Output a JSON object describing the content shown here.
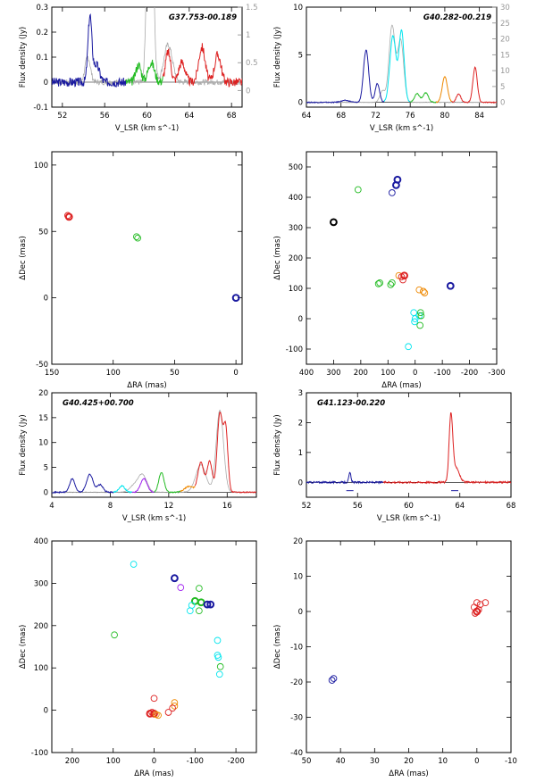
{
  "chart_data": [
    {
      "type": "line",
      "panel": "spectrum",
      "title": "G37.753-00.189",
      "xlabel": "V_LSR (km s^-1)",
      "ylabel": "Flux density (Jy)",
      "xlim": [
        51,
        69
      ],
      "ylim": [
        -0.1,
        0.3
      ],
      "xticks": [
        52,
        56,
        60,
        64,
        68
      ],
      "yticks": [
        -0.1,
        0,
        0.1,
        0.2,
        0.3
      ],
      "y2lim": [
        -0.3,
        1.5
      ],
      "y2ticks": [
        0,
        0.5,
        1,
        1.5
      ],
      "baseline": 0,
      "noise": 0.018,
      "overlay": {
        "color": "#aaaaaa",
        "peaks": [
          [
            54.4,
            0.1,
            0.25
          ],
          [
            60.3,
            1.2,
            0.25
          ],
          [
            62.0,
            0.15,
            0.4
          ]
        ]
      },
      "series": [
        {
          "color": "#1a1aa0",
          "range": [
            51,
            58
          ],
          "peaks": [
            [
              54.6,
              0.26,
              0.18
            ],
            [
              55.2,
              0.07,
              0.3
            ]
          ]
        },
        {
          "color": "#22bb22",
          "range": [
            58,
            61.5
          ],
          "peaks": [
            [
              59.2,
              0.07,
              0.25
            ],
            [
              60.4,
              0.08,
              0.3
            ]
          ]
        },
        {
          "color": "#dd2222",
          "range": [
            61.5,
            69
          ],
          "peaks": [
            [
              62.0,
              0.12,
              0.25
            ],
            [
              63.3,
              0.08,
              0.3
            ],
            [
              65.2,
              0.14,
              0.3
            ],
            [
              66.7,
              0.11,
              0.3
            ]
          ]
        }
      ]
    },
    {
      "type": "line",
      "panel": "spectrum",
      "title": "G40.282-00.219",
      "xlabel": "V_LSR (km s^-1)",
      "ylabel": "Flux density (Jy)",
      "xlim": [
        64,
        86
      ],
      "ylim": [
        -0.5,
        10
      ],
      "xticks": [
        64,
        68,
        72,
        76,
        80,
        84
      ],
      "yticks": [
        0,
        5,
        10
      ],
      "y2lim": [
        -1.5,
        30
      ],
      "y2ticks": [
        0,
        5,
        10,
        15,
        20,
        25,
        30
      ],
      "baseline": 0,
      "noise": 0.05,
      "overlay": {
        "color": "#aaaaaa",
        "peaks": [
          [
            73.9,
            8.0,
            0.35
          ],
          [
            74.9,
            6.5,
            0.35
          ],
          [
            72.8,
            1.2,
            0.3
          ]
        ]
      },
      "series": [
        {
          "color": "#1a1aa0",
          "range": [
            64,
            73
          ],
          "peaks": [
            [
              70.9,
              5.5,
              0.3
            ],
            [
              72.2,
              2.0,
              0.25
            ],
            [
              68.5,
              0.2,
              0.5
            ]
          ]
        },
        {
          "color": "#00e5ee",
          "range": [
            73,
            76
          ],
          "peaks": [
            [
              74.0,
              7.0,
              0.35
            ],
            [
              75.0,
              7.5,
              0.3
            ]
          ]
        },
        {
          "color": "#22bb22",
          "range": [
            76,
            79
          ],
          "peaks": [
            [
              76.8,
              0.9,
              0.3
            ],
            [
              77.8,
              1.0,
              0.3
            ]
          ]
        },
        {
          "color": "#ee8800",
          "range": [
            79,
            80.8
          ],
          "peaks": [
            [
              80.0,
              2.7,
              0.3
            ]
          ]
        },
        {
          "color": "#dd2222",
          "range": [
            80.8,
            86
          ],
          "peaks": [
            [
              81.6,
              0.9,
              0.25
            ],
            [
              83.5,
              3.7,
              0.25
            ]
          ]
        }
      ]
    },
    {
      "type": "scatter",
      "panel": "map",
      "xlabel": "ΔRA (mas)",
      "ylabel": "ΔDec (mas)",
      "xlim": [
        150,
        -5
      ],
      "ylim": [
        -50,
        110
      ],
      "xticks": [
        150,
        100,
        50,
        0
      ],
      "yticks": [
        -50,
        0,
        50,
        100
      ],
      "points": [
        {
          "x": 136,
          "y": 61,
          "color": "#dd2222",
          "bold": true
        },
        {
          "x": 137,
          "y": 62,
          "color": "#dd2222",
          "bold": false
        },
        {
          "x": 80,
          "y": 45,
          "color": "#22bb22",
          "bold": false
        },
        {
          "x": 81,
          "y": 46,
          "color": "#22bb22",
          "bold": false
        },
        {
          "x": 0,
          "y": 0,
          "color": "#1a1aa0",
          "bold": true
        }
      ]
    },
    {
      "type": "scatter",
      "panel": "map",
      "xlabel": "ΔRA (mas)",
      "ylabel": "ΔDec (mas)",
      "xlim": [
        400,
        -300
      ],
      "ylim": [
        -150,
        550
      ],
      "xticks": [
        400,
        300,
        200,
        100,
        0,
        -100,
        -200,
        -300
      ],
      "yticks": [
        -100,
        0,
        100,
        200,
        300,
        400,
        500
      ],
      "points": [
        {
          "x": 300,
          "y": 318,
          "color": "#000000",
          "bold": true
        },
        {
          "x": 210,
          "y": 425,
          "color": "#22bb22",
          "bold": false
        },
        {
          "x": 85,
          "y": 415,
          "color": "#1a1aa0",
          "bold": false
        },
        {
          "x": 70,
          "y": 440,
          "color": "#1a1aa0",
          "bold": true
        },
        {
          "x": 65,
          "y": 458,
          "color": "#1a1aa0",
          "bold": true
        },
        {
          "x": 135,
          "y": 115,
          "color": "#22bb22",
          "bold": false
        },
        {
          "x": 130,
          "y": 118,
          "color": "#22bb22",
          "bold": false
        },
        {
          "x": 90,
          "y": 112,
          "color": "#22bb22",
          "bold": false
        },
        {
          "x": 85,
          "y": 118,
          "color": "#22bb22",
          "bold": false
        },
        {
          "x": 60,
          "y": 142,
          "color": "#ee8800",
          "bold": false
        },
        {
          "x": 50,
          "y": 138,
          "color": "#dd2222",
          "bold": false
        },
        {
          "x": 40,
          "y": 142,
          "color": "#dd2222",
          "bold": true
        },
        {
          "x": 45,
          "y": 128,
          "color": "#dd2222",
          "bold": false
        },
        {
          "x": -15,
          "y": 95,
          "color": "#ee8800",
          "bold": false
        },
        {
          "x": -30,
          "y": 90,
          "color": "#ee8800",
          "bold": false
        },
        {
          "x": -35,
          "y": 85,
          "color": "#ee8800",
          "bold": false
        },
        {
          "x": -130,
          "y": 108,
          "color": "#1a1aa0",
          "bold": true
        },
        {
          "x": 5,
          "y": 20,
          "color": "#00e5ee",
          "bold": false
        },
        {
          "x": 0,
          "y": 0,
          "color": "#00e5ee",
          "bold": false
        },
        {
          "x": 2,
          "y": -10,
          "color": "#00e5ee",
          "bold": false
        },
        {
          "x": -15,
          "y": 10,
          "color": "#00e5ee",
          "bold": false
        },
        {
          "x": -20,
          "y": 20,
          "color": "#22bb22",
          "bold": false
        },
        {
          "x": -22,
          "y": 10,
          "color": "#22bb22",
          "bold": false
        },
        {
          "x": -18,
          "y": -22,
          "color": "#22bb22",
          "bold": false
        },
        {
          "x": 25,
          "y": -92,
          "color": "#00e5ee",
          "bold": false
        }
      ]
    },
    {
      "type": "line",
      "panel": "spectrum",
      "title": "G40.425+00.700",
      "xlabel": "V_LSR (km s^-1)",
      "ylabel": "Flux density (Jy)",
      "xlim": [
        4,
        18
      ],
      "ylim": [
        -1,
        20
      ],
      "xticks": [
        4,
        8,
        12,
        16
      ],
      "yticks": [
        0,
        5,
        10,
        15,
        20
      ],
      "baseline": 0,
      "noise": 0.12,
      "overlay": {
        "color": "#aaaaaa",
        "peaks": [
          [
            10.2,
            3.5,
            0.3
          ],
          [
            14.2,
            5.5,
            0.35
          ],
          [
            15.5,
            16.5,
            0.25
          ],
          [
            9.6,
            1.2,
            0.3
          ]
        ]
      },
      "series": [
        {
          "color": "#1a1aa0",
          "range": [
            4,
            8.2
          ],
          "peaks": [
            [
              5.4,
              2.7,
              0.18
            ],
            [
              6.6,
              3.6,
              0.22
            ],
            [
              7.3,
              1.5,
              0.2
            ]
          ]
        },
        {
          "color": "#00e5ee",
          "range": [
            8.2,
            9.5
          ],
          "peaks": [
            [
              8.8,
              1.3,
              0.2
            ]
          ]
        },
        {
          "color": "#a020f0",
          "range": [
            9.5,
            11.0
          ],
          "peaks": [
            [
              10.3,
              2.8,
              0.22
            ]
          ]
        },
        {
          "color": "#22bb22",
          "range": [
            11.0,
            12.8
          ],
          "peaks": [
            [
              11.5,
              4.0,
              0.18
            ]
          ]
        },
        {
          "color": "#ee8800",
          "range": [
            12.8,
            13.8
          ],
          "peaks": [
            [
              13.4,
              1.2,
              0.3
            ]
          ]
        },
        {
          "color": "#dd2222",
          "range": [
            13.8,
            18
          ],
          "peaks": [
            [
              14.2,
              6.0,
              0.2
            ],
            [
              14.8,
              6.2,
              0.18
            ],
            [
              15.5,
              15.8,
              0.18
            ],
            [
              15.9,
              12.5,
              0.15
            ]
          ]
        }
      ]
    },
    {
      "type": "line",
      "panel": "spectrum",
      "title": "G41.123-00.220",
      "xlabel": "V_LSR (km s^-1)",
      "ylabel": "Flux density (Jy)",
      "xlim": [
        52,
        68
      ],
      "ylim": [
        -0.5,
        3
      ],
      "xticks": [
        52,
        56,
        60,
        64,
        68
      ],
      "yticks": [
        0,
        1,
        2,
        3
      ],
      "baseline": 0,
      "noise": 0.03,
      "overlay": null,
      "series": [
        {
          "color": "#1a1aa0",
          "range": [
            52,
            58
          ],
          "peaks": [
            [
              55.4,
              0.32,
              0.08
            ]
          ]
        },
        {
          "color": "#dd2222",
          "range": [
            58,
            68
          ],
          "peaks": [
            [
              63.3,
              2.2,
              0.14
            ],
            [
              63.7,
              0.5,
              0.25
            ]
          ]
        }
      ],
      "markers": [
        [
          55.4,
          -0.28
        ],
        [
          63.6,
          -0.28
        ]
      ]
    },
    {
      "type": "scatter",
      "panel": "map",
      "xlabel": "ΔRA (mas)",
      "ylabel": "ΔDec (mas)",
      "xlim": [
        250,
        -250
      ],
      "ylim": [
        -100,
        400
      ],
      "xticks": [
        200,
        100,
        0,
        -100,
        -200
      ],
      "yticks": [
        -100,
        0,
        100,
        200,
        300,
        400
      ],
      "points": [
        {
          "x": 50,
          "y": 345,
          "color": "#00e5ee",
          "bold": false
        },
        {
          "x": -50,
          "y": 312,
          "color": "#1a1aa0",
          "bold": true
        },
        {
          "x": -65,
          "y": 290,
          "color": "#a020f0",
          "bold": false
        },
        {
          "x": -110,
          "y": 288,
          "color": "#22bb22",
          "bold": false
        },
        {
          "x": -100,
          "y": 258,
          "color": "#22bb22",
          "bold": true
        },
        {
          "x": -115,
          "y": 255,
          "color": "#22bb22",
          "bold": true
        },
        {
          "x": -130,
          "y": 250,
          "color": "#1a1aa0",
          "bold": true
        },
        {
          "x": -138,
          "y": 250,
          "color": "#1a1aa0",
          "bold": true
        },
        {
          "x": -92,
          "y": 248,
          "color": "#00e5ee",
          "bold": false
        },
        {
          "x": -88,
          "y": 235,
          "color": "#00e5ee",
          "bold": false
        },
        {
          "x": -110,
          "y": 235,
          "color": "#22bb22",
          "bold": false
        },
        {
          "x": 97,
          "y": 178,
          "color": "#22bb22",
          "bold": false
        },
        {
          "x": -155,
          "y": 165,
          "color": "#00e5ee",
          "bold": false
        },
        {
          "x": -155,
          "y": 130,
          "color": "#00e5ee",
          "bold": false
        },
        {
          "x": -157,
          "y": 125,
          "color": "#00e5ee",
          "bold": false
        },
        {
          "x": -162,
          "y": 103,
          "color": "#22bb22",
          "bold": false
        },
        {
          "x": -160,
          "y": 85,
          "color": "#00e5ee",
          "bold": false
        },
        {
          "x": 0,
          "y": 28,
          "color": "#dd2222",
          "bold": false
        },
        {
          "x": -50,
          "y": 18,
          "color": "#ee8800",
          "bold": false
        },
        {
          "x": -50,
          "y": 10,
          "color": "#ee8800",
          "bold": false
        },
        {
          "x": -45,
          "y": 5,
          "color": "#dd2222",
          "bold": false
        },
        {
          "x": -35,
          "y": -5,
          "color": "#dd2222",
          "bold": false
        },
        {
          "x": 5,
          "y": -5,
          "color": "#dd2222",
          "bold": false
        },
        {
          "x": 10,
          "y": -8,
          "color": "#dd2222",
          "bold": true
        },
        {
          "x": 0,
          "y": -8,
          "color": "#dd2222",
          "bold": true
        },
        {
          "x": -5,
          "y": -10,
          "color": "#ee8800",
          "bold": false
        },
        {
          "x": -10,
          "y": -12,
          "color": "#ee8800",
          "bold": false
        }
      ]
    },
    {
      "type": "scatter",
      "panel": "map",
      "xlabel": "ΔRA (mas)",
      "ylabel": "ΔDec (mas)",
      "xlim": [
        50,
        -10
      ],
      "ylim": [
        -40,
        20
      ],
      "xticks": [
        50,
        40,
        30,
        20,
        10,
        0,
        -10
      ],
      "yticks": [
        -40,
        -30,
        -20,
        -10,
        0,
        10,
        20
      ],
      "points": [
        {
          "x": 42.5,
          "y": -19.5,
          "color": "#1a1aa0",
          "bold": false
        },
        {
          "x": 42,
          "y": -19,
          "color": "#1a1aa0",
          "bold": false
        },
        {
          "x": 0,
          "y": 0,
          "color": "#dd2222",
          "bold": true
        },
        {
          "x": 0.5,
          "y": -0.5,
          "color": "#dd2222",
          "bold": false
        },
        {
          "x": -0.5,
          "y": 0.5,
          "color": "#dd2222",
          "bold": false
        },
        {
          "x": 0,
          "y": 2.5,
          "color": "#dd2222",
          "bold": false
        },
        {
          "x": -1,
          "y": 2,
          "color": "#dd2222",
          "bold": false
        },
        {
          "x": -2.5,
          "y": 2.5,
          "color": "#dd2222",
          "bold": false
        },
        {
          "x": 0.8,
          "y": 1.2,
          "color": "#dd2222",
          "bold": false
        }
      ]
    }
  ]
}
